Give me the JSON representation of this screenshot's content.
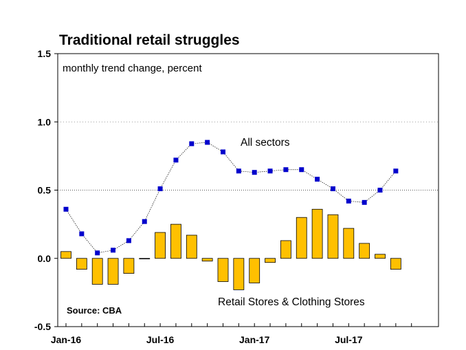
{
  "chart_data": {
    "type": "bar",
    "title": "Traditional retail struggles",
    "subtitle": "monthly trend change, percent",
    "source": "Source: CBA",
    "ylim": [
      -0.5,
      1.5
    ],
    "y_ticks": [
      "-0.5",
      "0.0",
      "0.5",
      "1.0",
      "1.5"
    ],
    "x_tick_labels": [
      {
        "label": "Jan-16",
        "index": 0
      },
      {
        "label": "Jul-16",
        "index": 6
      },
      {
        "label": "Jan-17",
        "index": 12
      },
      {
        "label": "Jul-17",
        "index": 18
      }
    ],
    "categories": [
      "Jan-16",
      "Feb-16",
      "Mar-16",
      "Apr-16",
      "May-16",
      "Jun-16",
      "Jul-16",
      "Aug-16",
      "Sep-16",
      "Oct-16",
      "Nov-16",
      "Dec-16",
      "Jan-17",
      "Feb-17",
      "Mar-17",
      "Apr-17",
      "May-17",
      "Jun-17",
      "Jul-17",
      "Aug-17",
      "Sep-17",
      "Oct-17",
      "Nov-17"
    ],
    "series": [
      {
        "name": "Retail Stores & Clothing Stores",
        "type": "bar",
        "color": "#FFC000",
        "values": [
          0.05,
          -0.08,
          -0.19,
          -0.19,
          -0.11,
          0.0,
          0.19,
          0.25,
          0.17,
          -0.02,
          -0.17,
          -0.23,
          -0.18,
          -0.03,
          0.13,
          0.3,
          0.36,
          0.32,
          0.22,
          0.11,
          0.03,
          -0.08,
          null
        ]
      },
      {
        "name": "All sectors",
        "type": "line",
        "color": "#0000CC",
        "values": [
          0.36,
          0.18,
          0.04,
          0.06,
          0.13,
          0.27,
          0.51,
          0.72,
          0.84,
          0.85,
          0.78,
          0.64,
          0.63,
          0.64,
          0.65,
          0.65,
          0.58,
          0.51,
          0.42,
          0.41,
          0.5,
          0.64,
          null
        ]
      }
    ],
    "gridlines": [
      1.0,
      0.5
    ],
    "legend": "inline annotations"
  }
}
